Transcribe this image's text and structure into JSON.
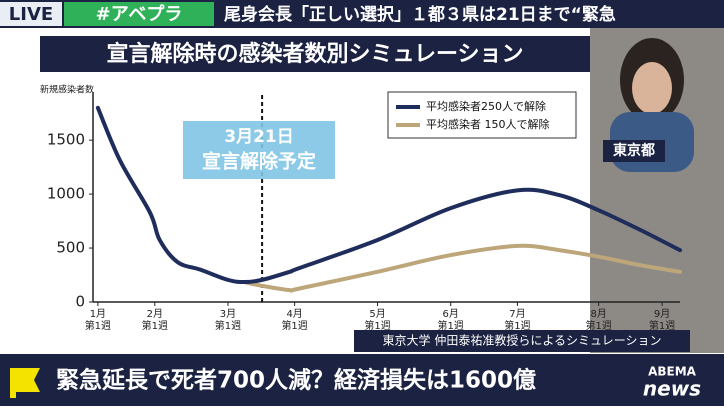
{
  "broadcast": {
    "live": "LIVE",
    "hashtag": "#アベプラ",
    "headline": "尾身会長「正しい選択」１都３県は21日まで“緊急",
    "location": "東京都",
    "source": "東京大学 仲田泰祐准教授らによるシミュレーション",
    "lower_third": "緊急延長で死者700人減？経済損失は1600億",
    "logo_top": "ABEMA",
    "logo_bottom": "news"
  },
  "chart_data": {
    "type": "line",
    "title": "宣言解除時の感染者数別シミュレーション",
    "y_label": "新規感染者数",
    "x": [
      0,
      1.35,
      3.2,
      3.8,
      4.9,
      6.3,
      8,
      9,
      10.1,
      11.8,
      12.4,
      17.2,
      21.7,
      25.8,
      28.4,
      30.8,
      33.4,
      35.8
    ],
    "series": [
      {
        "name": "平均感染者250人で解除",
        "color": "#1f2d5c",
        "values": [
          1800,
          1315,
          830,
          575,
          370,
          300,
          205,
          185,
          205,
          280,
          315,
          575,
          870,
          1035,
          990,
          850,
          665,
          480
        ]
      },
      {
        "name": "平均感染者 150人で解除",
        "color": "#bca67a",
        "values": [
          null,
          null,
          null,
          null,
          null,
          null,
          null,
          185,
          150,
          110,
          125,
          280,
          435,
          520,
          480,
          420,
          340,
          280
        ]
      }
    ],
    "xlim": [
      -0.3,
      35.8
    ],
    "ylim": [
      0,
      1900
    ],
    "xticks": [
      {
        "value": 0,
        "label": "1月第1週"
      },
      {
        "value": 3.5,
        "label": "2月第1週"
      },
      {
        "value": 8,
        "label": "3月第1週"
      },
      {
        "value": 12.1,
        "label": "4月第1週"
      },
      {
        "value": 17.2,
        "label": "5月第1週"
      },
      {
        "value": 21.7,
        "label": "6月第1週"
      },
      {
        "value": 25.8,
        "label": "7月第1週"
      },
      {
        "value": 30.8,
        "label": "8月第1週"
      },
      {
        "value": 34.7,
        "label": "9月第1週"
      }
    ],
    "yticks": [
      0,
      500,
      1000,
      1500
    ],
    "annotation": {
      "x": 10.1,
      "date": "3月21日",
      "text": "宣言解除予定"
    }
  }
}
